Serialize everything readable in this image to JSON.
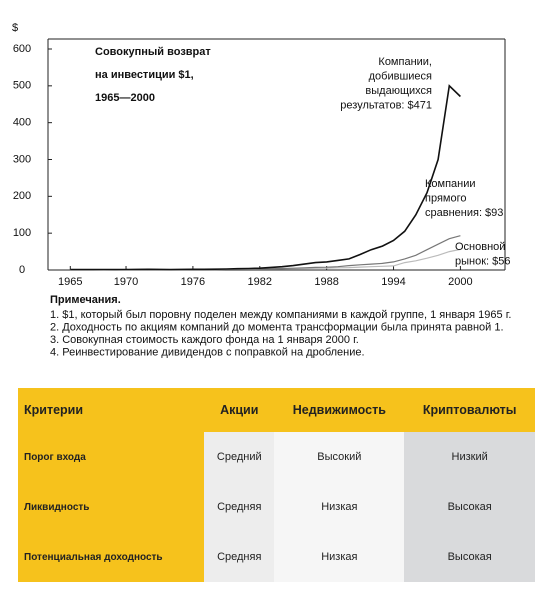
{
  "chart_data": {
    "type": "line",
    "title": [
      "Совокупный возврат",
      "на инвестиции $1,",
      "1965—2000"
    ],
    "y_label": "$",
    "x": [
      1965,
      1966,
      1967,
      1968,
      1969,
      1970,
      1971,
      1972,
      1973,
      1974,
      1975,
      1976,
      1977,
      1978,
      1979,
      1980,
      1981,
      1982,
      1983,
      1984,
      1985,
      1986,
      1987,
      1988,
      1989,
      1990,
      1991,
      1992,
      1993,
      1994,
      1995,
      1996,
      1997,
      1998,
      1999,
      2000
    ],
    "series": [
      {
        "name": [
          "Компании,",
          "добившиеся",
          "выдающихся",
          "результатов: $471"
        ],
        "color": "#111111",
        "values": [
          1,
          1,
          1.2,
          1.3,
          1.2,
          1.3,
          1.5,
          1.8,
          1.5,
          1.2,
          1.6,
          2,
          2,
          2.3,
          2.8,
          3.5,
          4,
          5,
          7,
          9,
          12,
          16,
          20,
          22,
          26,
          30,
          42,
          55,
          65,
          80,
          105,
          150,
          210,
          300,
          500,
          471
        ]
      },
      {
        "name": [
          "Компании",
          "прямого",
          "сравнения: $93"
        ],
        "color": "#777777",
        "values": [
          1,
          1,
          1.1,
          1.2,
          1.1,
          1.1,
          1.3,
          1.4,
          1.2,
          1,
          1.3,
          1.6,
          1.6,
          1.8,
          2,
          2.4,
          2.6,
          3,
          3.6,
          4,
          5,
          6,
          7,
          7.5,
          9,
          12,
          14,
          16,
          18,
          22,
          30,
          40,
          55,
          70,
          85,
          93
        ]
      },
      {
        "name": [
          "Основной",
          "рынок: $56"
        ],
        "color": "#bbbbbb",
        "values": [
          1,
          1,
          1.1,
          1.1,
          1,
          1,
          1.1,
          1.3,
          1.1,
          0.9,
          1.1,
          1.3,
          1.3,
          1.4,
          1.6,
          1.9,
          2,
          2.3,
          2.7,
          3,
          3.6,
          4.2,
          4.5,
          5,
          6,
          6.5,
          8,
          9,
          10,
          11,
          20,
          25,
          32,
          40,
          50,
          56
        ]
      }
    ],
    "xlim": [
      1963,
      2004
    ],
    "ylim": [
      0,
      600
    ],
    "xticks": [
      1965,
      1970,
      1976,
      1982,
      1988,
      1994,
      2000
    ],
    "yticks": [
      0,
      100,
      200,
      300,
      400,
      500,
      600
    ],
    "notes_title": "Примечания.",
    "notes": [
      "1. $1, который был поровну поделен между компаниями в каждой группе, 1 января 1965 г.",
      "2. Доходность по акциям компаний до момента трансформации была принята равной 1.",
      "3. Совокупная стоимость каждого фонда на 1 января 2000 г.",
      "4. Реинвестирование дивидендов с поправкой на дробление."
    ]
  },
  "table": {
    "header": [
      "Критерии",
      "Акции",
      "Недвижимость",
      "Криптовалюты"
    ],
    "rows": [
      [
        "Порог входа",
        "Средний",
        "Высокий",
        "Низкий"
      ],
      [
        "Ликвидность",
        "Средняя",
        "Низкая",
        "Высокая"
      ],
      [
        "Потенциальная доходность",
        "Средняя",
        "Низкая",
        "Высокая"
      ]
    ]
  }
}
